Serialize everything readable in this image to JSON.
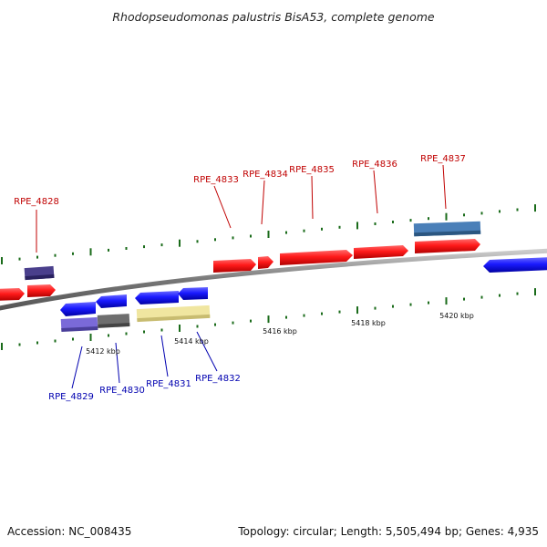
{
  "title": "Rhodopseudomonas palustris BisA53, complete genome",
  "footer": {
    "accession": "Accession: NC_008435",
    "topology": "Topology: circular; Length: 5,505,494 bp; Genes: 4,935"
  },
  "colors": {
    "forward_label": "#c00000",
    "reverse_label": "#0000b0",
    "tick": "#1a6b1a",
    "backbone": "#888888"
  },
  "scale_labels": [
    "5412 kbp",
    "5414 kbp",
    "5416 kbp",
    "5418 kbp",
    "5420 kbp"
  ],
  "forward_labels": [
    {
      "text": "RPE_4828"
    },
    {
      "text": "RPE_4833"
    },
    {
      "text": "RPE_4834"
    },
    {
      "text": "RPE_4835"
    },
    {
      "text": "RPE_4836"
    },
    {
      "text": "RPE_4837"
    }
  ],
  "reverse_labels": [
    {
      "text": "RPE_4829"
    },
    {
      "text": "RPE_4830"
    },
    {
      "text": "RPE_4831"
    },
    {
      "text": "RPE_4832"
    }
  ]
}
